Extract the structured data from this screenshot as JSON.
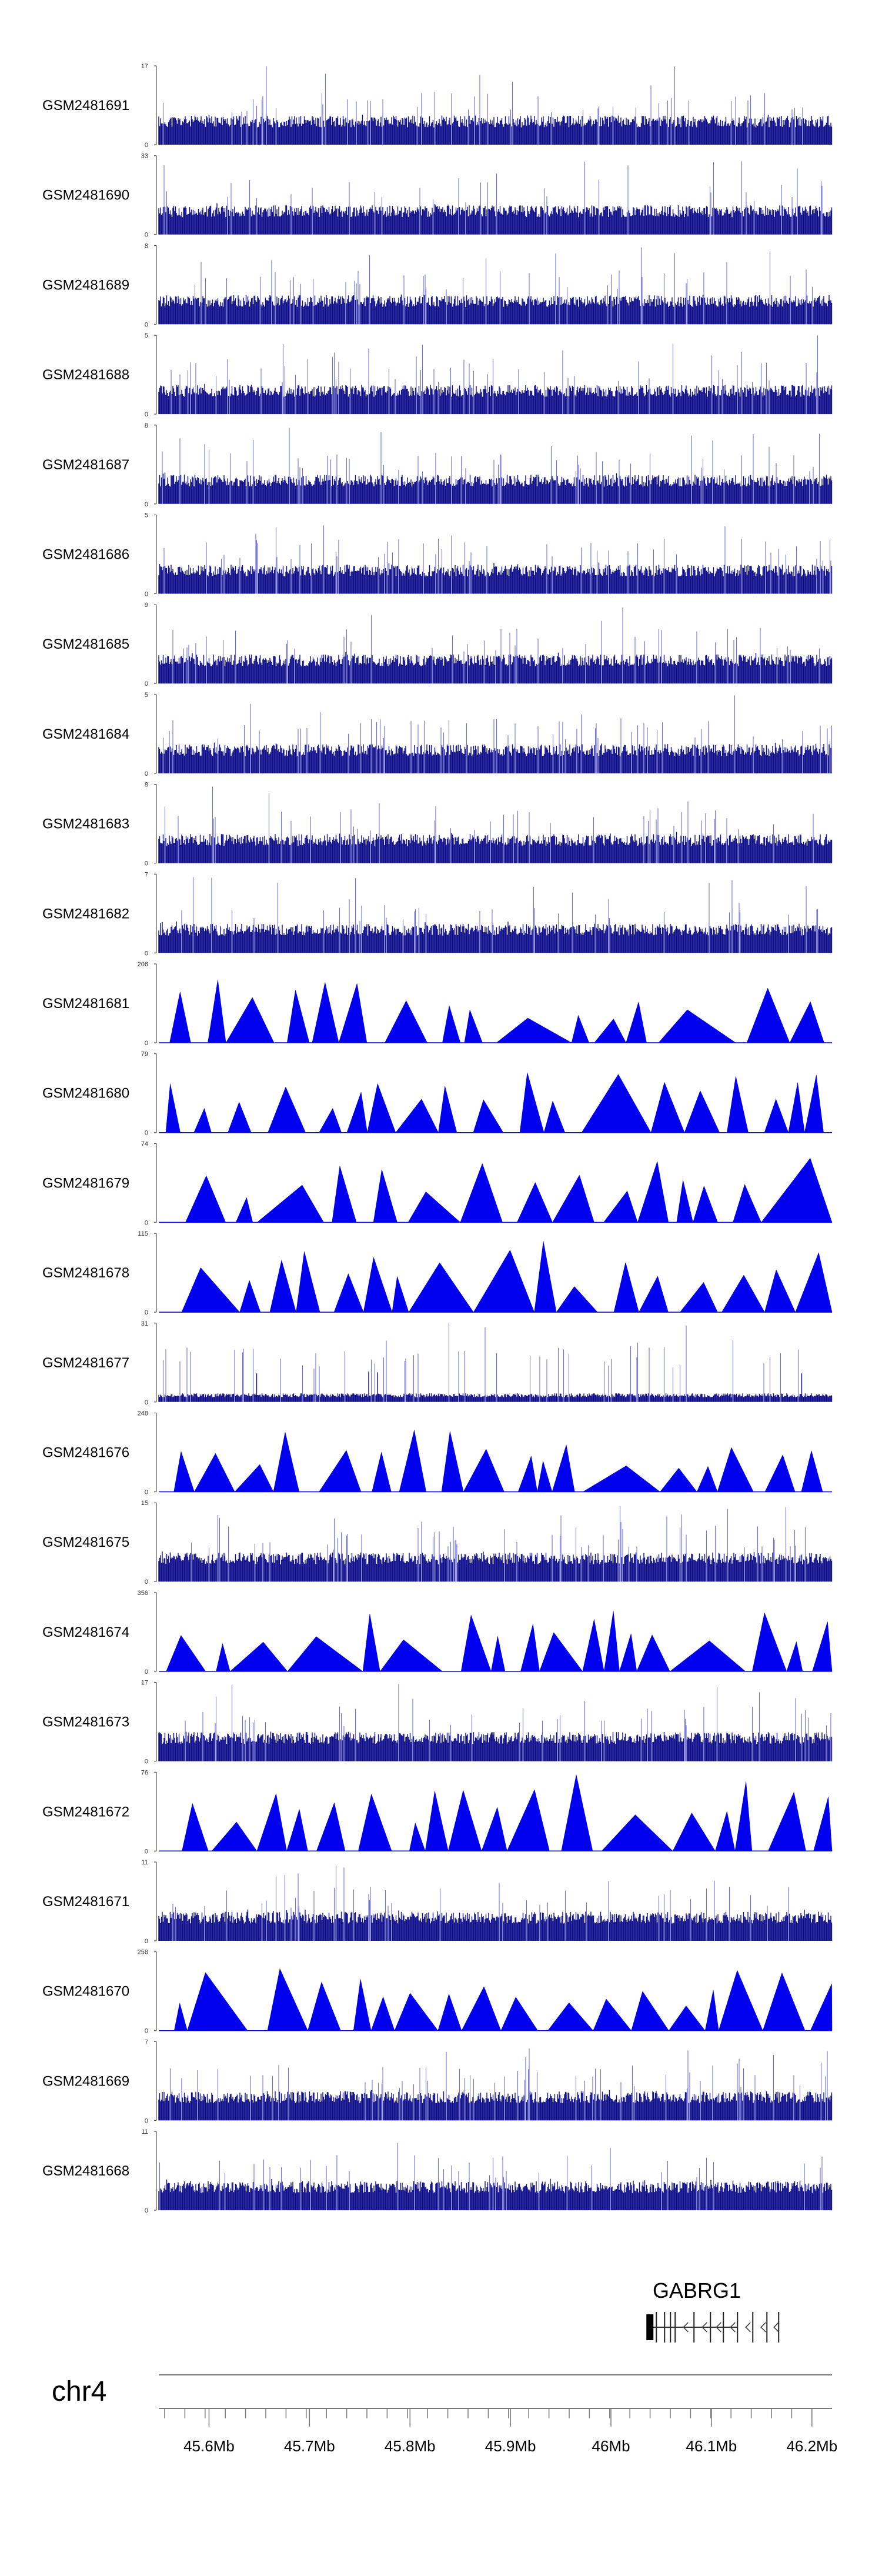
{
  "chart_data": {
    "type": "area",
    "chromosome": "chr4",
    "x_ticks": [
      "45.6Mb",
      "45.7Mb",
      "45.8Mb",
      "45.9Mb",
      "46Mb",
      "46.1Mb",
      "46.2Mb"
    ],
    "x_range_mb": [
      45.55,
      46.22
    ],
    "gene": {
      "name": "GABRG1",
      "start_mb": 46.037,
      "end_mb": 46.126,
      "strand": "-"
    },
    "track_style_colors": {
      "dense": "#0d0d8a",
      "peaks": "#0000ee"
    },
    "tracks": [
      {
        "name": "GSM2481691",
        "ymax": "17",
        "ymin": "0",
        "style": "dense",
        "seed": 11
      },
      {
        "name": "GSM2481690",
        "ymax": "33",
        "ymin": "0",
        "style": "dense",
        "seed": 12
      },
      {
        "name": "GSM2481689",
        "ymax": "8",
        "ymin": "0",
        "style": "dense",
        "seed": 13
      },
      {
        "name": "GSM2481688",
        "ymax": "5",
        "ymin": "0",
        "style": "dense",
        "seed": 14
      },
      {
        "name": "GSM2481687",
        "ymax": "8",
        "ymin": "0",
        "style": "dense",
        "seed": 15
      },
      {
        "name": "GSM2481686",
        "ymax": "5",
        "ymin": "0",
        "style": "dense",
        "seed": 16
      },
      {
        "name": "GSM2481685",
        "ymax": "9",
        "ymin": "0",
        "style": "dense",
        "seed": 17
      },
      {
        "name": "GSM2481684",
        "ymax": "5",
        "ymin": "0",
        "style": "dense",
        "seed": 18
      },
      {
        "name": "GSM2481683",
        "ymax": "8",
        "ymin": "0",
        "style": "dense",
        "seed": 19
      },
      {
        "name": "GSM2481682",
        "ymax": "7",
        "ymin": "0",
        "style": "dense",
        "seed": 20
      },
      {
        "name": "GSM2481681",
        "ymax": "206",
        "ymin": "0",
        "style": "peaks",
        "seed": 21
      },
      {
        "name": "GSM2481680",
        "ymax": "79",
        "ymin": "0",
        "style": "peaks",
        "seed": 22
      },
      {
        "name": "GSM2481679",
        "ymax": "74",
        "ymin": "0",
        "style": "peaks",
        "seed": 23
      },
      {
        "name": "GSM2481678",
        "ymax": "115",
        "ymin": "0",
        "style": "peaks",
        "seed": 24
      },
      {
        "name": "GSM2481677",
        "ymax": "31",
        "ymin": "0",
        "style": "sparse",
        "seed": 25
      },
      {
        "name": "GSM2481676",
        "ymax": "248",
        "ymin": "0",
        "style": "peaks",
        "seed": 26
      },
      {
        "name": "GSM2481675",
        "ymax": "15",
        "ymin": "0",
        "style": "dense",
        "seed": 27
      },
      {
        "name": "GSM2481674",
        "ymax": "356",
        "ymin": "0",
        "style": "peaks",
        "seed": 28
      },
      {
        "name": "GSM2481673",
        "ymax": "17",
        "ymin": "0",
        "style": "dense",
        "seed": 29
      },
      {
        "name": "GSM2481672",
        "ymax": "76",
        "ymin": "0",
        "style": "peaks",
        "seed": 30
      },
      {
        "name": "GSM2481671",
        "ymax": "11",
        "ymin": "0",
        "style": "dense",
        "seed": 31
      },
      {
        "name": "GSM2481670",
        "ymax": "258",
        "ymin": "0",
        "style": "peaks",
        "seed": 32
      },
      {
        "name": "GSM2481669",
        "ymax": "7",
        "ymin": "0",
        "style": "dense",
        "seed": 33
      },
      {
        "name": "GSM2481668",
        "ymax": "11",
        "ymin": "0",
        "style": "dense",
        "seed": 34
      }
    ]
  }
}
